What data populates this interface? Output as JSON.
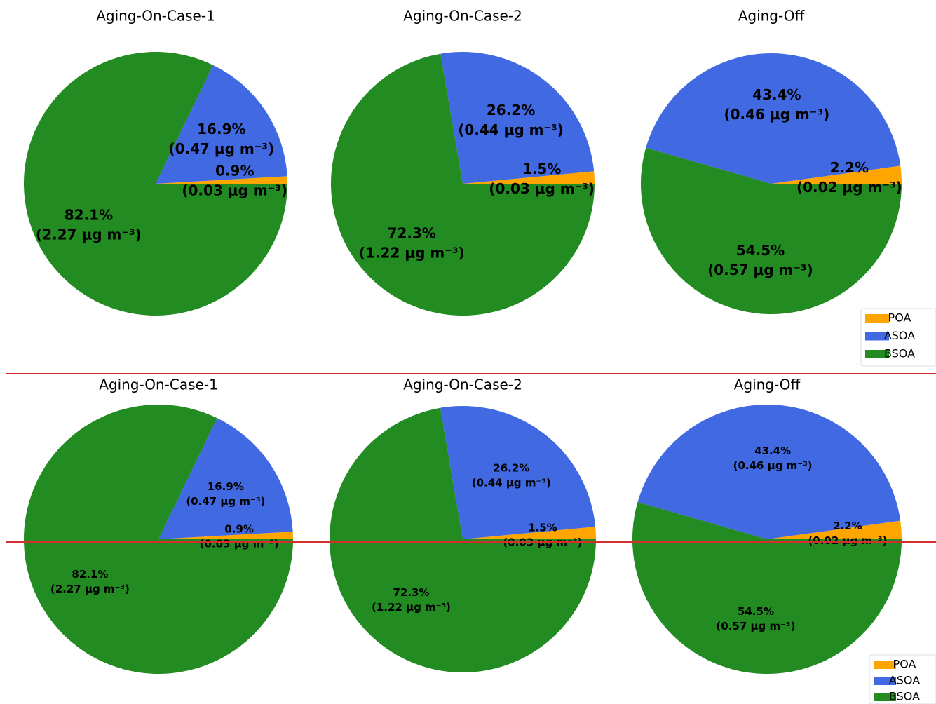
{
  "chart_data": [
    {
      "type": "pie",
      "title": "Aging-On-Case-1",
      "categories": [
        "POA",
        "ASOA",
        "BSOA"
      ],
      "colors": [
        "#ffa500",
        "#4169e1",
        "#228b22"
      ],
      "values": [
        0.9,
        16.9,
        82.1
      ],
      "value_labels": [
        "0.9%",
        "16.9%",
        "82.1%"
      ],
      "sublabels": [
        "(0.03 μg m⁻³)",
        "(0.47 μg m⁻³)",
        "(2.27 μg m⁻³)"
      ]
    },
    {
      "type": "pie",
      "title": "Aging-On-Case-2",
      "categories": [
        "POA",
        "ASOA",
        "BSOA"
      ],
      "colors": [
        "#ffa500",
        "#4169e1",
        "#228b22"
      ],
      "values": [
        1.5,
        26.2,
        72.3
      ],
      "value_labels": [
        "1.5%",
        "26.2%",
        "72.3%"
      ],
      "sublabels": [
        "(0.03 μg m⁻³)",
        "(0.44 μg m⁻³)",
        "(1.22 μg m⁻³)"
      ]
    },
    {
      "type": "pie",
      "title": "Aging-Off",
      "categories": [
        "POA",
        "ASOA",
        "BSOA"
      ],
      "colors": [
        "#ffa500",
        "#4169e1",
        "#228b22"
      ],
      "values": [
        2.2,
        43.4,
        54.5
      ],
      "value_labels": [
        "2.2%",
        "43.4%",
        "54.5%"
      ],
      "sublabels": [
        "(0.02 μg m⁻³)",
        "(0.46 μg m⁻³)",
        "(0.57 μg m⁻³)"
      ],
      "legend": "lower right"
    },
    {
      "type": "pie",
      "title": "Aging-On-Case-1",
      "categories": [
        "POA",
        "ASOA",
        "BSOA"
      ],
      "colors": [
        "#ffa500",
        "#4169e1",
        "#228b22"
      ],
      "values": [
        0.9,
        16.9,
        82.1
      ],
      "value_labels": [
        "0.9%",
        "16.9%",
        "82.1%"
      ],
      "sublabels": [
        "(0.03 μg m⁻³)",
        "(0.47 μg m⁻³)",
        "(2.27 μg m⁻³)"
      ]
    },
    {
      "type": "pie",
      "title": "Aging-On-Case-2",
      "categories": [
        "POA",
        "ASOA",
        "BSOA"
      ],
      "colors": [
        "#ffa500",
        "#4169e1",
        "#228b22"
      ],
      "values": [
        1.5,
        26.2,
        72.3
      ],
      "value_labels": [
        "1.5%",
        "26.2%",
        "72.3%"
      ],
      "sublabels": [
        "(0.03 μg m⁻³)",
        "(0.44 μg m⁻³)",
        "(1.22 μg m⁻³)"
      ]
    },
    {
      "type": "pie",
      "title": "Aging-Off",
      "categories": [
        "POA",
        "ASOA",
        "BSOA"
      ],
      "colors": [
        "#ffa500",
        "#4169e1",
        "#228b22"
      ],
      "values": [
        2.2,
        43.4,
        54.5
      ],
      "value_labels": [
        "2.2%",
        "43.4%",
        "54.5%"
      ],
      "sublabels": [
        "(0.02 μg m⁻³)",
        "(0.46 μg m⁻³)",
        "(0.57 μg m⁻³)"
      ],
      "legend": "lower right"
    }
  ]
}
